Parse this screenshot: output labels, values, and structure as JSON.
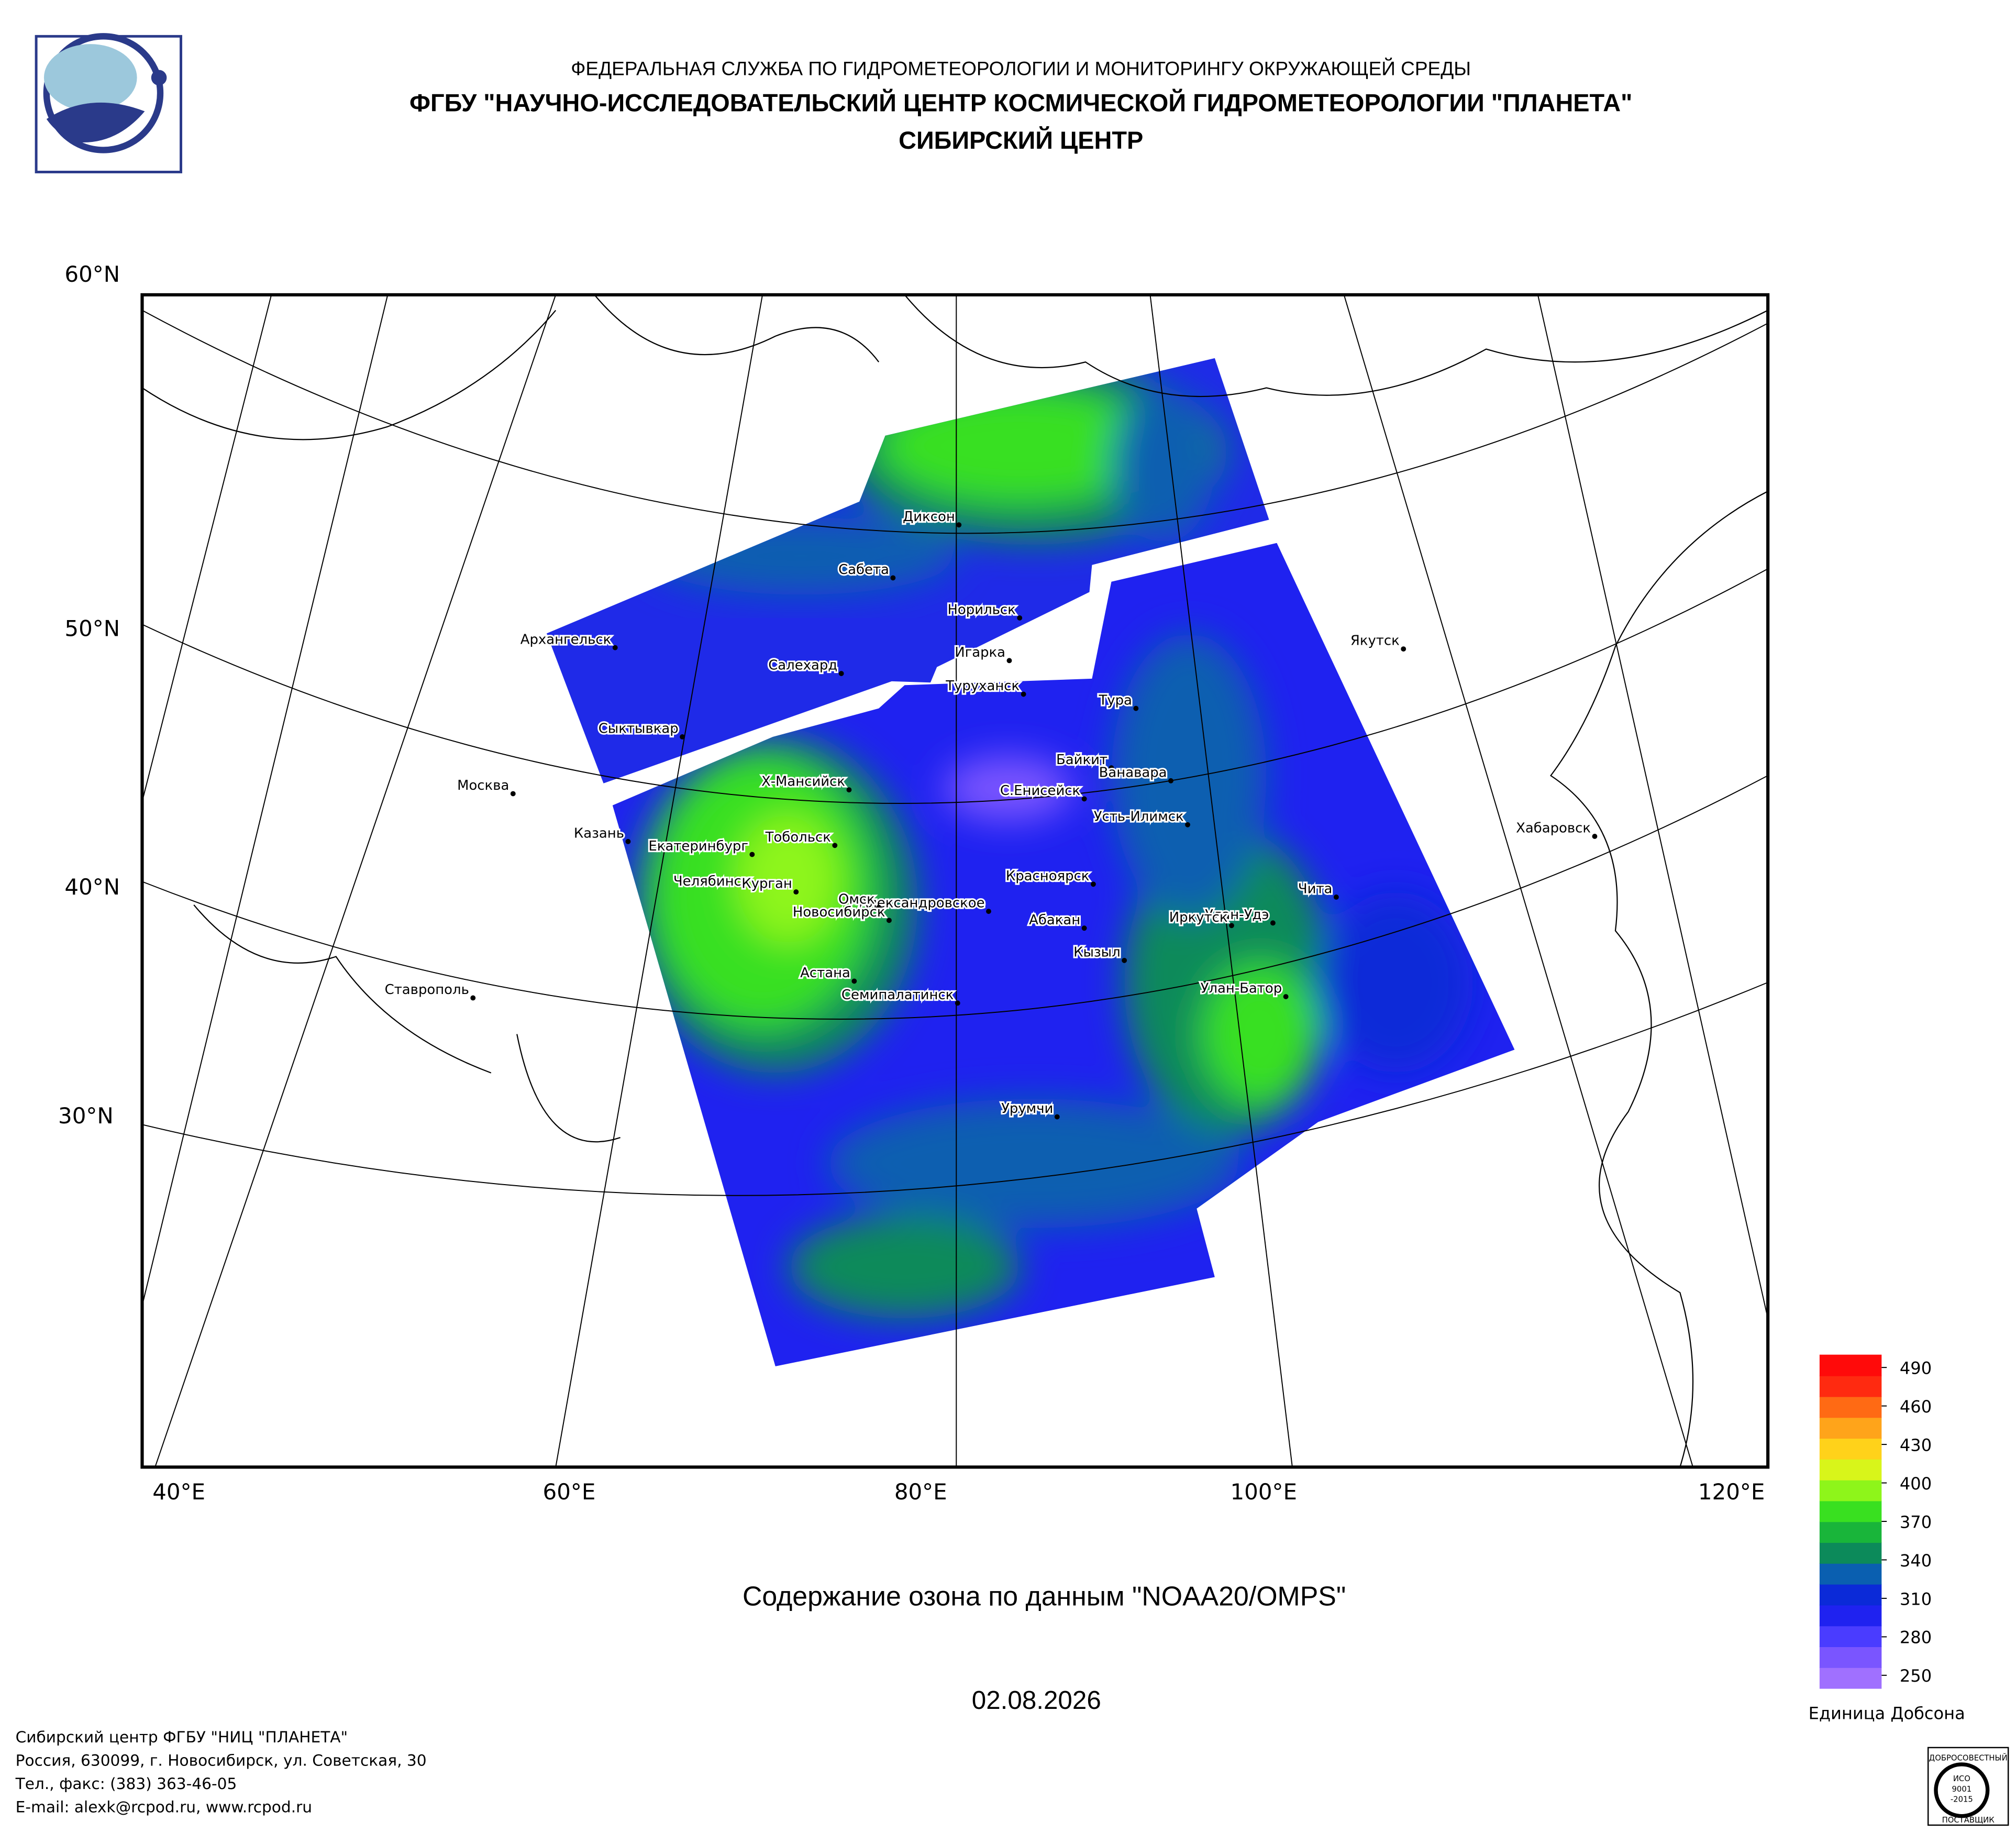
{
  "header": {
    "line1": "ФЕДЕРАЛЬНАЯ СЛУЖБА ПО ГИДРОМЕТЕОРОЛОГИИ И МОНИТОРИНГУ ОКРУЖАЮЩЕЙ СРЕДЫ",
    "line2": "ФГБУ \"НАУЧНО-ИССЛЕДОВАТЕЛЬСКИЙ ЦЕНТР КОСМИЧЕСКОЙ ГИДРОМЕТЕОРОЛОГИИ \"ПЛАНЕТА\"",
    "line3": "СИБИРСКИЙ ЦЕНТР"
  },
  "map": {
    "lat_labels": [
      "60°N",
      "50°N",
      "40°N",
      "30°N"
    ],
    "lon_labels": [
      "40°E",
      "60°E",
      "80°E",
      "100°E",
      "120°E"
    ],
    "cities": [
      "Диксон",
      "Сабета",
      "Норильск",
      "Архангельск",
      "Салехард",
      "Игарка",
      "Туруханск",
      "Тура",
      "Якутск",
      "Сыктывкар",
      "Байкит",
      "Ванавара",
      "Москва",
      "Х-Мансийск",
      "С.Енисейск",
      "Усть-Илимск",
      "Хабаровск",
      "Казань",
      "Тобольск",
      "Екатеринбург",
      "Красноярск",
      "Челябинск",
      "Курган",
      "Чита",
      "Александровское",
      "Омск",
      "Новосибирск",
      "Улан-Удэ",
      "Абакан",
      "Иркутск",
      "Кызыл",
      "Астана",
      "Ставрополь",
      "Семипалатинск",
      "Улан-Батор",
      "Урумчи"
    ]
  },
  "colorbar": {
    "ticks": [
      250,
      280,
      310,
      340,
      370,
      400,
      430,
      460,
      490
    ],
    "lim": [
      240,
      500
    ],
    "colors": [
      "#a070ff",
      "#7a55ff",
      "#4a3cff",
      "#1f22f0",
      "#0b2ad8",
      "#0a5fb0",
      "#0c8a5a",
      "#19b53a",
      "#39e020",
      "#8ef51a",
      "#d8f51a",
      "#ffd21a",
      "#ffa41a",
      "#ff6a14",
      "#ff2a10",
      "#ff0a0a"
    ],
    "unit": "Единица Добсона"
  },
  "title": "Содержание озона по данным \"NOAA20/OMPS\"",
  "date": "02.08.2026",
  "footer": [
    "Сибирский центр ФГБУ \"НИЦ \"ПЛАНЕТА\"",
    "Россия, 630099, г. Новосибирск, ул. Советская, 30",
    "Тел., факс: (383) 363-46-05",
    "E-mail: alexk@rcpod.ru, www.rcpod.ru"
  ],
  "stamp": [
    "ДОБРОСОВЕСТНЫЙ",
    "ИСО",
    "9001",
    "-2015",
    "ПОСТАВЩИК"
  ]
}
